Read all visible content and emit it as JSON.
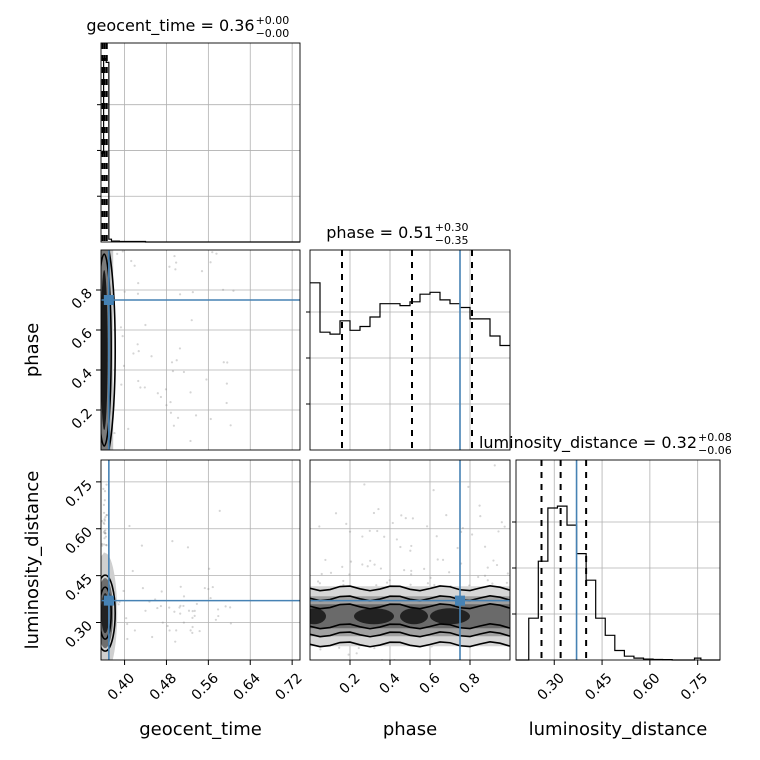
{
  "chart_data": {
    "type": "corner",
    "parameters": [
      "geocent_time",
      "phase",
      "luminosity_distance"
    ],
    "truth_values": {
      "geocent_time": 0.37,
      "phase": 0.75,
      "luminosity_distance": 0.37
    },
    "colors": {
      "truth": "#4682b4",
      "hist": "#000000",
      "contour": "#000000",
      "grid": "#b0b0b0"
    },
    "titles": {
      "geocent_time": {
        "label": "geocent_time",
        "median": "0.36",
        "plus": "+0.00",
        "minus": "−0.00"
      },
      "phase": {
        "label": "phase",
        "median": "0.51",
        "plus": "+0.30",
        "minus": "−0.35"
      },
      "luminosity_distance": {
        "label": "luminosity_distance",
        "median": "0.32",
        "plus": "+0.08",
        "minus": "−0.06"
      }
    },
    "axis_labels": {
      "x": [
        "geocent_time",
        "phase",
        "luminosity_distance"
      ],
      "y": [
        "phase",
        "luminosity_distance"
      ]
    },
    "ticks": {
      "geocent_time": [
        "0.40",
        "0.48",
        "0.56",
        "0.64",
        "0.72"
      ],
      "phase": [
        "0.2",
        "0.4",
        "0.6",
        "0.8"
      ],
      "luminosity_distance": [
        "0.30",
        "0.45",
        "0.60",
        "0.75"
      ]
    },
    "ranges": {
      "geocent_time": [
        0.355,
        0.735
      ],
      "phase": [
        0.0,
        1.0
      ],
      "luminosity_distance": [
        0.18,
        0.82
      ]
    },
    "quantiles": {
      "geocent_time": [
        0.358,
        0.362,
        0.366
      ],
      "phase": [
        0.16,
        0.51,
        0.81
      ],
      "luminosity_distance": [
        0.26,
        0.32,
        0.4
      ]
    },
    "histograms": {
      "geocent_time": {
        "edges": [
          0.355,
          0.36,
          0.365,
          0.37,
          0.375,
          0.39,
          0.44,
          0.735
        ],
        "values": [
          0.47,
          0.97,
          0.95,
          0.015,
          0.005,
          0.003,
          0.0
        ]
      },
      "phase": {
        "edges": [
          0.0,
          0.05,
          0.1,
          0.15,
          0.2,
          0.25,
          0.3,
          0.35,
          0.4,
          0.45,
          0.5,
          0.55,
          0.6,
          0.65,
          0.7,
          0.75,
          0.8,
          0.85,
          0.9,
          0.95,
          1.0
        ],
        "values": [
          0.88,
          0.62,
          0.61,
          0.68,
          0.63,
          0.65,
          0.7,
          0.77,
          0.77,
          0.76,
          0.78,
          0.82,
          0.83,
          0.79,
          0.77,
          0.75,
          0.69,
          0.69,
          0.6,
          0.55
        ]
      },
      "luminosity_distance": {
        "edges": [
          0.18,
          0.22,
          0.25,
          0.28,
          0.31,
          0.34,
          0.37,
          0.4,
          0.43,
          0.46,
          0.49,
          0.52,
          0.55,
          0.58,
          0.61,
          0.64,
          0.67,
          0.7,
          0.74,
          0.76,
          0.82
        ],
        "values": [
          0.0,
          0.22,
          0.52,
          0.8,
          0.81,
          0.71,
          0.56,
          0.42,
          0.22,
          0.13,
          0.05,
          0.02,
          0.01,
          0.005,
          0.003,
          0.002,
          0.0,
          0.0,
          0.01,
          0.0
        ]
      }
    }
  }
}
